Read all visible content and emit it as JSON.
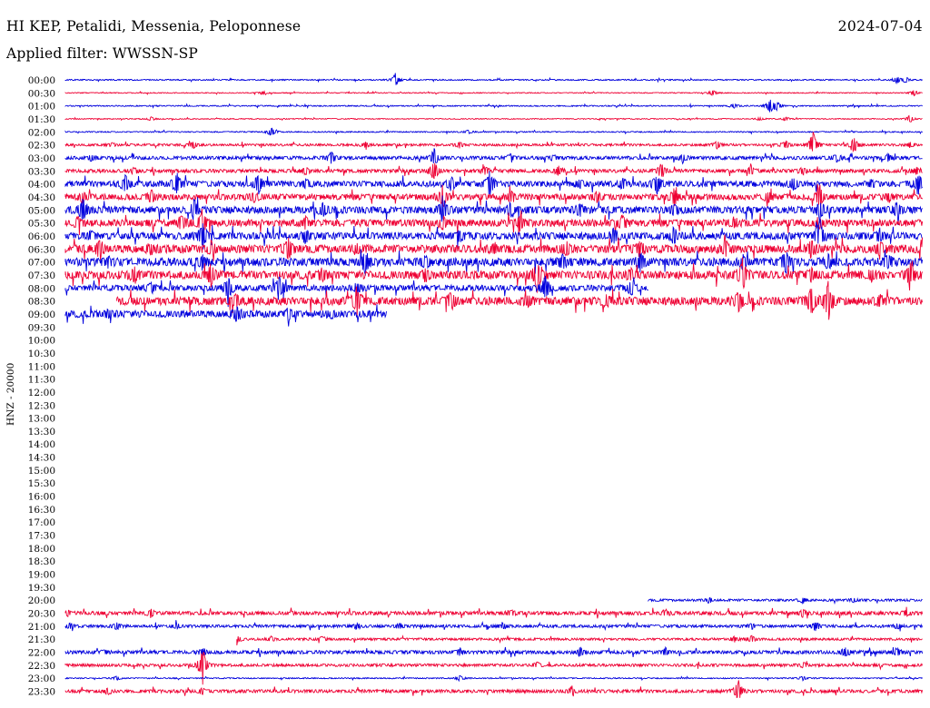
{
  "header": {
    "station": "HI KEP, Petalidi, Messenia, Peloponnese",
    "date": "2024-07-04",
    "filter": "Applied filter: WWSSN-SP"
  },
  "channel_label": "HNZ - 20000",
  "colors": {
    "odd_trace": "#0000dd",
    "even_trace": "#ee0033",
    "text": "#000000"
  },
  "chart_data": {
    "type": "line",
    "title": "HI KEP, Petalidi, Messenia, Peloponnese",
    "ylabel": "HNZ - 20000",
    "xlabel": "",
    "row_labels": [
      "00:00",
      "00:30",
      "01:00",
      "01:30",
      "02:00",
      "02:30",
      "03:00",
      "03:30",
      "04:00",
      "04:30",
      "05:00",
      "05:30",
      "06:00",
      "06:30",
      "07:00",
      "07:30",
      "08:00",
      "08:30",
      "09:00",
      "09:30",
      "10:00",
      "10:30",
      "11:00",
      "11:30",
      "12:00",
      "12:30",
      "13:00",
      "13:30",
      "14:00",
      "14:30",
      "15:00",
      "15:30",
      "16:00",
      "16:30",
      "17:00",
      "17:30",
      "18:00",
      "18:30",
      "19:00",
      "19:30",
      "20:00",
      "20:30",
      "21:00",
      "21:30",
      "22:00",
      "22:30",
      "23:00",
      "23:30"
    ],
    "row_minutes": 30,
    "traces": [
      {
        "label": "00:00",
        "start": 0,
        "end": 1,
        "noise": 0.5,
        "events": [
          [
            0.385,
            7
          ],
          [
            0.97,
            4
          ],
          [
            0.98,
            3
          ]
        ]
      },
      {
        "label": "00:30",
        "start": 0,
        "end": 1,
        "noise": 0.4,
        "events": [
          [
            0.23,
            2
          ],
          [
            0.755,
            3
          ],
          [
            0.99,
            3
          ]
        ]
      },
      {
        "label": "01:00",
        "start": 0,
        "end": 1,
        "noise": 0.5,
        "events": [
          [
            0.78,
            3
          ],
          [
            0.822,
            8
          ],
          [
            0.83,
            4
          ]
        ]
      },
      {
        "label": "01:30",
        "start": 0,
        "end": 1,
        "noise": 0.4,
        "events": [
          [
            0.1,
            2
          ],
          [
            0.81,
            2
          ],
          [
            0.84,
            2
          ],
          [
            0.985,
            4
          ]
        ]
      },
      {
        "label": "02:00",
        "start": 0,
        "end": 1,
        "noise": 0.5,
        "events": [
          [
            0.24,
            5
          ],
          [
            0.47,
            2
          ]
        ]
      },
      {
        "label": "02:30",
        "start": 0,
        "end": 1,
        "noise": 1.0,
        "events": [
          [
            0.055,
            2
          ],
          [
            0.15,
            4
          ],
          [
            0.35,
            3
          ],
          [
            0.46,
            3
          ],
          [
            0.76,
            4
          ],
          [
            0.84,
            4
          ],
          [
            0.872,
            14
          ],
          [
            0.92,
            8
          ],
          [
            0.985,
            3
          ]
        ]
      },
      {
        "label": "03:00",
        "start": 0,
        "end": 1,
        "noise": 1.5,
        "events": [
          [
            0.03,
            3
          ],
          [
            0.31,
            7
          ],
          [
            0.43,
            9
          ],
          [
            0.52,
            5
          ],
          [
            0.57,
            3
          ],
          [
            0.72,
            4
          ],
          [
            0.9,
            4
          ],
          [
            0.96,
            4
          ]
        ]
      },
      {
        "label": "03:30",
        "start": 0,
        "end": 1,
        "noise": 1.5,
        "events": [
          [
            0.08,
            3
          ],
          [
            0.28,
            4
          ],
          [
            0.43,
            11
          ],
          [
            0.49,
            4
          ],
          [
            0.575,
            5
          ],
          [
            0.695,
            9
          ],
          [
            0.8,
            4
          ],
          [
            0.86,
            4
          ],
          [
            0.993,
            4
          ]
        ]
      },
      {
        "label": "04:00",
        "start": 0,
        "end": 1,
        "noise": 2.5,
        "events": [
          [
            0.07,
            9
          ],
          [
            0.13,
            12
          ],
          [
            0.225,
            12
          ],
          [
            0.28,
            5
          ],
          [
            0.45,
            7
          ],
          [
            0.495,
            12
          ],
          [
            0.6,
            4
          ],
          [
            0.65,
            5
          ],
          [
            0.69,
            10
          ],
          [
            0.85,
            6
          ],
          [
            0.94,
            4
          ],
          [
            0.995,
            12
          ]
        ]
      },
      {
        "label": "04:30",
        "start": 0,
        "end": 1,
        "noise": 2.5,
        "events": [
          [
            0.02,
            6
          ],
          [
            0.1,
            6
          ],
          [
            0.22,
            5
          ],
          [
            0.44,
            12
          ],
          [
            0.52,
            6
          ],
          [
            0.62,
            5
          ],
          [
            0.71,
            9
          ],
          [
            0.82,
            6
          ],
          [
            0.88,
            12
          ],
          [
            0.96,
            5
          ]
        ]
      },
      {
        "label": "05:00",
        "start": 0,
        "end": 1,
        "noise": 3,
        "events": [
          [
            0.02,
            14
          ],
          [
            0.15,
            10
          ],
          [
            0.3,
            8
          ],
          [
            0.44,
            14
          ],
          [
            0.52,
            8
          ],
          [
            0.6,
            6
          ],
          [
            0.71,
            6
          ],
          [
            0.88,
            8
          ],
          [
            0.97,
            8
          ]
        ]
      },
      {
        "label": "05:30",
        "start": 0,
        "end": 1,
        "noise": 3,
        "events": [
          [
            0.015,
            5
          ],
          [
            0.135,
            9
          ],
          [
            0.16,
            14
          ],
          [
            0.28,
            7
          ],
          [
            0.44,
            6
          ],
          [
            0.53,
            7
          ],
          [
            0.65,
            7
          ],
          [
            0.78,
            5
          ],
          [
            0.88,
            7
          ]
        ]
      },
      {
        "label": "06:00",
        "start": 0,
        "end": 1,
        "noise": 3,
        "events": [
          [
            0.03,
            5
          ],
          [
            0.16,
            16
          ],
          [
            0.28,
            7
          ],
          [
            0.46,
            6
          ],
          [
            0.64,
            8
          ],
          [
            0.71,
            8
          ],
          [
            0.88,
            18
          ],
          [
            0.95,
            6
          ]
        ]
      },
      {
        "label": "06:30",
        "start": 0,
        "end": 1,
        "noise": 3.5,
        "events": [
          [
            0.04,
            10
          ],
          [
            0.1,
            5
          ],
          [
            0.17,
            6
          ],
          [
            0.26,
            11
          ],
          [
            0.34,
            5
          ],
          [
            0.5,
            6
          ],
          [
            0.585,
            7
          ],
          [
            0.67,
            9
          ],
          [
            0.77,
            7
          ],
          [
            0.87,
            7
          ],
          [
            0.95,
            8
          ]
        ]
      },
      {
        "label": "07:00",
        "start": 0,
        "end": 1,
        "noise": 3.5,
        "events": [
          [
            0.05,
            4
          ],
          [
            0.16,
            7
          ],
          [
            0.35,
            12
          ],
          [
            0.42,
            5
          ],
          [
            0.58,
            6
          ],
          [
            0.67,
            10
          ],
          [
            0.79,
            6
          ],
          [
            0.84,
            10
          ],
          [
            0.89,
            7
          ],
          [
            0.96,
            6
          ]
        ]
      },
      {
        "label": "07:30",
        "start": 0,
        "end": 1,
        "noise": 3.5,
        "events": [
          [
            0.08,
            8
          ],
          [
            0.17,
            11
          ],
          [
            0.3,
            6
          ],
          [
            0.42,
            6
          ],
          [
            0.55,
            22
          ],
          [
            0.66,
            6
          ],
          [
            0.79,
            18
          ],
          [
            0.87,
            7
          ],
          [
            0.94,
            6
          ],
          [
            0.985,
            14
          ]
        ]
      },
      {
        "label": "08:00",
        "start": 0,
        "end": 0.68,
        "noise": 2.5,
        "events": [
          [
            0.1,
            6
          ],
          [
            0.19,
            12
          ],
          [
            0.25,
            14
          ],
          [
            0.34,
            6
          ],
          [
            0.56,
            14
          ],
          [
            0.66,
            10
          ]
        ]
      },
      {
        "label": "08:30",
        "start": 0.06,
        "end": 1,
        "noise": 3.5,
        "events": [
          [
            0.2,
            5
          ],
          [
            0.34,
            14
          ],
          [
            0.45,
            9
          ],
          [
            0.54,
            5
          ],
          [
            0.63,
            6
          ],
          [
            0.785,
            11
          ],
          [
            0.87,
            18
          ],
          [
            0.89,
            22
          ],
          [
            0.95,
            6
          ]
        ]
      },
      {
        "label": "09:00",
        "start": 0,
        "end": 0.375,
        "noise": 3,
        "events": [
          [
            0.05,
            4
          ],
          [
            0.2,
            8
          ],
          [
            0.26,
            5
          ],
          [
            0.31,
            4
          ]
        ]
      },
      {
        "label": "20:00",
        "start": 0.68,
        "end": 1,
        "noise": 1,
        "events": [
          [
            0.75,
            3
          ],
          [
            0.86,
            3
          ],
          [
            0.92,
            2
          ]
        ]
      },
      {
        "label": "20:30",
        "start": 0,
        "end": 1,
        "noise": 1.6,
        "events": [
          [
            0.003,
            3
          ],
          [
            0.1,
            4
          ],
          [
            0.52,
            3
          ],
          [
            0.7,
            3
          ],
          [
            0.86,
            4
          ],
          [
            0.98,
            3
          ]
        ]
      },
      {
        "label": "21:00",
        "start": 0,
        "end": 1,
        "noise": 1.2,
        "events": [
          [
            0.005,
            3
          ],
          [
            0.06,
            4
          ],
          [
            0.13,
            3
          ],
          [
            0.34,
            3
          ],
          [
            0.39,
            3
          ],
          [
            0.51,
            3
          ],
          [
            0.8,
            3
          ],
          [
            0.875,
            5
          ],
          [
            0.97,
            3
          ]
        ]
      },
      {
        "label": "21:30",
        "start": 0.2,
        "end": 1,
        "noise": 1.0,
        "events": [
          [
            0.2,
            5
          ],
          [
            0.24,
            3
          ],
          [
            0.3,
            3
          ],
          [
            0.78,
            3
          ],
          [
            0.8,
            4
          ]
        ]
      },
      {
        "label": "22:00",
        "start": 0,
        "end": 1,
        "noise": 1.5,
        "events": [
          [
            0.045,
            2
          ],
          [
            0.16,
            4
          ],
          [
            0.46,
            4
          ],
          [
            0.6,
            5
          ],
          [
            0.7,
            4
          ],
          [
            0.91,
            5
          ],
          [
            0.97,
            4
          ]
        ]
      },
      {
        "label": "22:30",
        "start": 0,
        "end": 1,
        "noise": 1.2,
        "events": [
          [
            0.16,
            20
          ],
          [
            0.55,
            3
          ],
          [
            0.86,
            3
          ]
        ]
      },
      {
        "label": "23:00",
        "start": 0,
        "end": 1,
        "noise": 0.5,
        "events": [
          [
            0.06,
            2
          ],
          [
            0.46,
            3
          ],
          [
            0.86,
            2
          ]
        ]
      },
      {
        "label": "23:30",
        "start": 0,
        "end": 1,
        "noise": 1.4,
        "events": [
          [
            0.05,
            3
          ],
          [
            0.16,
            3
          ],
          [
            0.59,
            3
          ],
          [
            0.785,
            12
          ]
        ]
      }
    ]
  }
}
